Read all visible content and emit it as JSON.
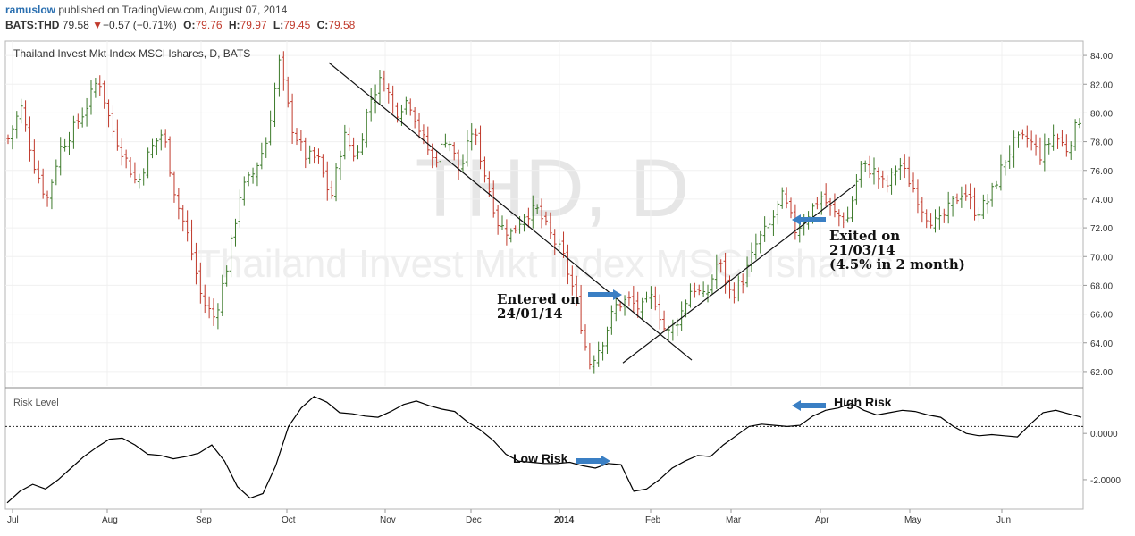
{
  "header": {
    "user": "ramuslow",
    "published": "published on TradingView.com, August 07, 2014",
    "symbol": "BATS:THD",
    "last": "79.58",
    "change": "−0.57 (−0.71%)",
    "o_label": "O:",
    "o_value": "79.76",
    "h_label": "H:",
    "h_value": "79.97",
    "l_label": "L:",
    "l_value": "79.45",
    "c_label": "C:",
    "c_value": "79.58"
  },
  "chart_data": [
    {
      "type": "bar",
      "title": "Thailand Invest Mkt Index MSCI Ishares, D, BATS",
      "watermark_symbol": "THD, D",
      "watermark_name": "Thailand Invest Mkt Index MSCI Ishares",
      "ylim": [
        61,
        85
      ],
      "yticks": [
        "84.00",
        "82.00",
        "80.00",
        "78.00",
        "76.00",
        "74.00",
        "72.00",
        "70.00",
        "68.00",
        "66.00",
        "64.00",
        "62.00"
      ],
      "x_months": [
        "Jul",
        "Aug",
        "Sep",
        "Oct",
        "Nov",
        "Dec",
        "2014",
        "Feb",
        "Mar",
        "Apr",
        "May",
        "Jun"
      ],
      "colors": {
        "up": "#3c7a2a",
        "down": "#c0392b"
      },
      "price_path": [
        [
          "Jul",
          78.2
        ],
        [
          "Jul",
          80.4
        ],
        [
          "Jul",
          76.5
        ],
        [
          "Jul",
          73.9
        ],
        [
          "Jul",
          77.5
        ],
        [
          "Jul",
          78.8
        ],
        [
          "Jul",
          80.3
        ],
        [
          "Aug",
          82.5
        ],
        [
          "Aug",
          79.0
        ],
        [
          "Aug",
          77.0
        ],
        [
          "Aug",
          75.0
        ],
        [
          "Aug",
          77.4
        ],
        [
          "Aug",
          78.7
        ],
        [
          "Aug",
          74.0
        ],
        [
          "Aug",
          71.2
        ],
        [
          "Aug",
          67.0
        ],
        [
          "Sep",
          65.7
        ],
        [
          "Sep",
          69.5
        ],
        [
          "Sep",
          74.5
        ],
        [
          "Sep",
          75.8
        ],
        [
          "Sep",
          78.0
        ],
        [
          "Sep",
          83.5
        ],
        [
          "Sep",
          79.0
        ],
        [
          "Sep",
          77.0
        ],
        [
          "Oct",
          76.8
        ],
        [
          "Oct",
          74.0
        ],
        [
          "Oct",
          78.5
        ],
        [
          "Oct",
          76.8
        ],
        [
          "Oct",
          80.8
        ],
        [
          "Oct",
          82.5
        ],
        [
          "Oct",
          80.0
        ],
        [
          "Oct",
          81.0
        ],
        [
          "Nov",
          78.5
        ],
        [
          "Nov",
          76.5
        ],
        [
          "Nov",
          78.5
        ],
        [
          "Nov",
          75.8
        ],
        [
          "Nov",
          79.0
        ],
        [
          "Nov",
          75.5
        ],
        [
          "Nov",
          72.2
        ],
        [
          "Dec",
          71.6
        ],
        [
          "Dec",
          73.0
        ],
        [
          "Dec",
          73.2
        ],
        [
          "Dec",
          71.5
        ],
        [
          "Dec",
          70.0
        ],
        [
          "Dec",
          67.0
        ],
        [
          "2014",
          62.5
        ],
        [
          "2014",
          64.0
        ],
        [
          "2014",
          66.5
        ],
        [
          "2014",
          67.0
        ],
        [
          "2014",
          66.3
        ],
        [
          "2014",
          67.3
        ],
        [
          "Feb",
          64.5
        ],
        [
          "Feb",
          65.8
        ],
        [
          "Feb",
          68.0
        ],
        [
          "Feb",
          67.0
        ],
        [
          "Feb",
          69.8
        ],
        [
          "Feb",
          67.3
        ],
        [
          "Feb",
          68.5
        ],
        [
          "Mar",
          71.0
        ],
        [
          "Mar",
          72.2
        ],
        [
          "Mar",
          74.2
        ],
        [
          "Mar",
          71.8
        ],
        [
          "Mar",
          73.0
        ],
        [
          "Apr",
          74.2
        ],
        [
          "Apr",
          73.0
        ],
        [
          "Apr",
          72.5
        ],
        [
          "Apr",
          76.3
        ],
        [
          "Apr",
          76.0
        ],
        [
          "May",
          74.8
        ],
        [
          "May",
          76.5
        ],
        [
          "May",
          75.0
        ],
        [
          "May",
          73.0
        ],
        [
          "May",
          72.2
        ],
        [
          "May",
          73.5
        ],
        [
          "May",
          74.7
        ],
        [
          "May",
          73.0
        ],
        [
          "Jun",
          74.0
        ],
        [
          "Jun",
          76.3
        ],
        [
          "Jun",
          78.0
        ],
        [
          "Jun",
          78.2
        ],
        [
          "Jun",
          77.0
        ],
        [
          "Jun",
          78.5
        ],
        [
          "Jun",
          77.5
        ],
        [
          "Jun",
          79.6
        ]
      ],
      "trend_lines": [
        {
          "name": "downtrend",
          "from": [
            "Oct",
            83.5
          ],
          "to": [
            "Feb",
            62.8
          ]
        },
        {
          "name": "uptrend",
          "from": [
            "2014",
            62.6
          ],
          "to": [
            "Apr",
            75.0
          ]
        }
      ],
      "annotations": [
        {
          "text": [
            "Entered on",
            "24/01/14"
          ],
          "date": "24/01/14",
          "arrow": "right"
        },
        {
          "text": [
            "Exited on",
            "21/03/14",
            "(4.5% in 2 month)"
          ],
          "date": "21/03/14",
          "arrow": "left"
        }
      ]
    },
    {
      "type": "line",
      "title": "Risk Level",
      "ylim": [
        -3.2,
        1.9
      ],
      "yticks": [
        "0.0000",
        "-2.0000"
      ],
      "baseline": 0.3,
      "color": "#000000",
      "values": [
        -3.0,
        -2.5,
        -2.2,
        -2.4,
        -2.0,
        -1.5,
        -1.0,
        -0.6,
        -0.25,
        -0.2,
        -0.5,
        -0.9,
        -0.95,
        -1.1,
        -1.0,
        -0.85,
        -0.5,
        -1.2,
        -2.3,
        -2.8,
        -2.6,
        -1.4,
        0.3,
        1.1,
        1.6,
        1.35,
        0.9,
        0.85,
        0.75,
        0.7,
        0.95,
        1.25,
        1.4,
        1.2,
        1.05,
        0.95,
        0.5,
        0.15,
        -0.3,
        -0.9,
        -1.2,
        -1.25,
        -1.3,
        -1.3,
        -1.25,
        -1.4,
        -1.5,
        -1.3,
        -1.35,
        -2.5,
        -2.4,
        -2.0,
        -1.5,
        -1.2,
        -0.95,
        -1.0,
        -0.5,
        -0.1,
        0.3,
        0.4,
        0.35,
        0.3,
        0.35,
        0.75,
        1.0,
        1.1,
        1.3,
        1.0,
        0.8,
        0.9,
        1.0,
        0.95,
        0.8,
        0.7,
        0.3,
        0.0,
        -0.1,
        -0.05,
        -0.1,
        -0.15,
        0.4,
        0.9,
        1.0,
        0.85,
        0.7
      ],
      "annotations": [
        {
          "text": "Low Risk",
          "arrow": "right"
        },
        {
          "text": "High Risk",
          "arrow": "left"
        }
      ]
    }
  ]
}
